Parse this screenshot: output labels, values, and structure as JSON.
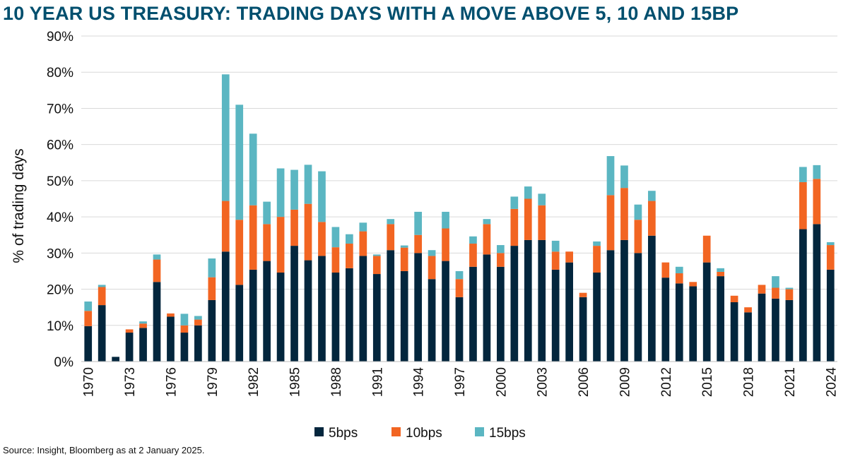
{
  "title": "10 YEAR US TREASURY: TRADING DAYS WITH A MOVE ABOVE 5, 10 AND 15BP",
  "source": "Source: Insight, Bloomberg as at 2 January 2025.",
  "colors": {
    "s5": "#03263d",
    "s10": "#f26522",
    "s15": "#5bb6c2",
    "title": "#004f6e"
  },
  "chart_data": {
    "type": "bar",
    "stacked": true,
    "title": "10 YEAR US TREASURY: TRADING DAYS WITH A MOVE ABOVE 5, 10 AND 15BP",
    "ylabel": "% of trading days",
    "xlabel": "",
    "ylim": [
      0,
      90
    ],
    "yticks": [
      "0%",
      "10%",
      "20%",
      "30%",
      "40%",
      "50%",
      "60%",
      "70%",
      "80%",
      "90%"
    ],
    "grid": true,
    "legend_position": "bottom",
    "categories": [
      1970,
      1971,
      1972,
      1973,
      1974,
      1975,
      1976,
      1977,
      1978,
      1979,
      1980,
      1981,
      1982,
      1983,
      1984,
      1985,
      1986,
      1987,
      1988,
      1989,
      1990,
      1991,
      1992,
      1993,
      1994,
      1995,
      1996,
      1997,
      1998,
      1999,
      2000,
      2001,
      2002,
      2003,
      2004,
      2005,
      2006,
      2007,
      2008,
      2009,
      2010,
      2011,
      2012,
      2013,
      2014,
      2015,
      2016,
      2017,
      2018,
      2019,
      2020,
      2021,
      2022,
      2023,
      2024
    ],
    "xtick_labels": [
      "1970",
      "1973",
      "1976",
      "1979",
      "1982",
      "1985",
      "1988",
      "1991",
      "1994",
      "1997",
      "2000",
      "2003",
      "2006",
      "2009",
      "2012",
      "2015",
      "2018",
      "2021",
      "2024"
    ],
    "series": [
      {
        "name": "5bps",
        "values": [
          9.8,
          15.6,
          1.3,
          8.0,
          9.3,
          22.0,
          12.4,
          8.0,
          10.0,
          17.0,
          30.4,
          21.2,
          25.4,
          27.8,
          24.6,
          32.0,
          28.0,
          29.2,
          24.6,
          25.8,
          29.2,
          24.2,
          30.8,
          25.0,
          30.0,
          22.8,
          27.8,
          17.8,
          26.2,
          29.6,
          26.2,
          32.0,
          33.6,
          33.6,
          25.4,
          27.4,
          17.8,
          24.6,
          30.8,
          33.6,
          30.0,
          34.8,
          23.2,
          21.6,
          20.8,
          27.4,
          23.6,
          16.4,
          13.6,
          18.8,
          17.4,
          17.0,
          36.6,
          38.0,
          25.4
        ]
      },
      {
        "name": "10bps",
        "values": [
          4.2,
          5.0,
          0,
          0.9,
          1.2,
          6.2,
          0.9,
          2.0,
          1.6,
          6.3,
          14.0,
          18.0,
          17.8,
          10.2,
          15.4,
          10.0,
          15.6,
          9.4,
          7.0,
          6.8,
          6.8,
          5.0,
          7.2,
          6.5,
          5.0,
          6.4,
          9.0,
          5.0,
          6.4,
          8.4,
          3.8,
          10.2,
          11.4,
          9.6,
          5.0,
          3.0,
          1.2,
          7.4,
          15.2,
          14.4,
          9.2,
          9.6,
          4.2,
          2.8,
          1.2,
          7.4,
          1.2,
          1.8,
          1.4,
          2.4,
          3.0,
          3.0,
          13.0,
          12.5,
          6.8
        ]
      },
      {
        "name": "15bps",
        "values": [
          2.6,
          0.6,
          0,
          0,
          0.6,
          1.4,
          0,
          3.2,
          1.0,
          5.2,
          35.0,
          31.8,
          19.8,
          6.2,
          13.4,
          11.0,
          10.8,
          14.0,
          5.6,
          2.6,
          2.4,
          0.4,
          1.4,
          0.6,
          6.4,
          1.6,
          4.6,
          2.2,
          2.0,
          1.4,
          2.2,
          3.4,
          3.4,
          3.2,
          3.0,
          0,
          0,
          1.2,
          10.8,
          6.2,
          4.2,
          2.8,
          0,
          1.8,
          0,
          0,
          1.0,
          0,
          0,
          0,
          3.2,
          0.4,
          4.2,
          3.8,
          0.8
        ]
      }
    ]
  }
}
